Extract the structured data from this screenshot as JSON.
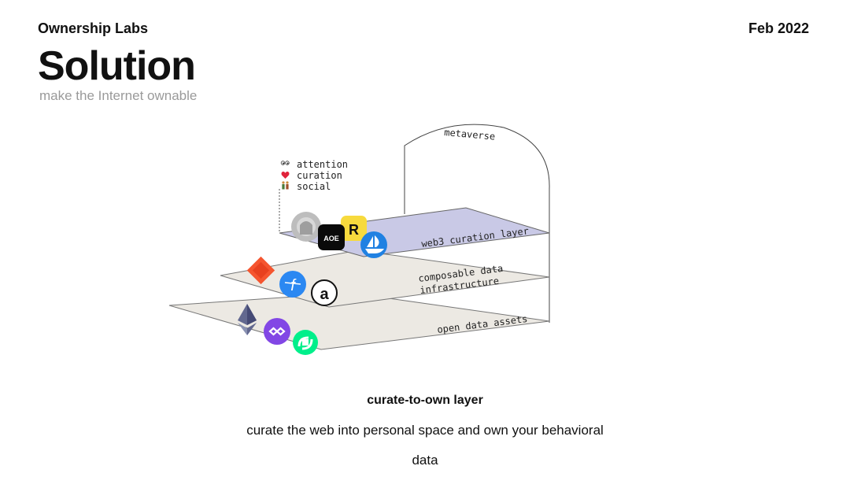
{
  "header": {
    "company": "Ownership Labs",
    "date": "Feb 2022"
  },
  "title": "Solution",
  "subtitle": "make the Internet ownable",
  "diagram": {
    "arch_label": "metaverse",
    "legend": [
      {
        "icon": "eyes-icon",
        "label": "attention"
      },
      {
        "icon": "heart-icon",
        "label": "curation"
      },
      {
        "icon": "people-icon",
        "label": "social"
      }
    ],
    "layers": [
      {
        "label": "web3 curation layer",
        "color": "#c9c9e6"
      },
      {
        "label_lines": [
          "composable data",
          "infrastructure"
        ],
        "color": "#ece9e3"
      },
      {
        "label": "open data assets",
        "color": "#ece9e3"
      }
    ],
    "logo_letters": {
      "rarible": "R",
      "arweave": "a",
      "filecoin": "f",
      "aoe": "AOE"
    }
  },
  "caption": {
    "heading": "curate-to-own layer",
    "line1": "curate the web into personal space and own your behavioral",
    "line2": "data"
  }
}
